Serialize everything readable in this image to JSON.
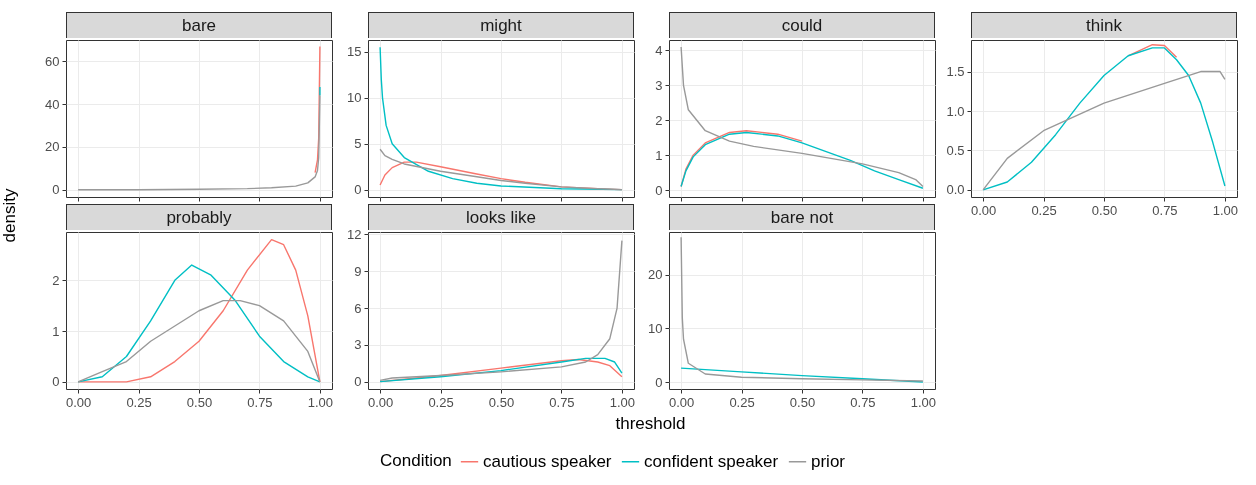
{
  "chart_data": [
    {
      "type": "line",
      "title": "bare",
      "xlim": [
        -0.05,
        1.05
      ],
      "xticks": [
        {
          "value": 0,
          "label": null
        },
        {
          "value": 0.25,
          "label": null
        },
        {
          "value": 0.5,
          "label": null
        },
        {
          "value": 0.75,
          "label": null
        },
        {
          "value": 1,
          "label": null
        }
      ],
      "ylim": [
        -3.4,
        70
      ],
      "yticks": [
        0,
        20,
        40,
        60
      ],
      "grid": true,
      "tick_labels": "y",
      "series": [
        {
          "color": "#f8766d",
          "x": [
            0.98,
            0.99,
            0.995,
            1
          ],
          "values": [
            8,
            14,
            24,
            67
          ]
        },
        {
          "color": "#00bfc4",
          "x": [
            1,
            1
          ],
          "values": [
            44,
            48
          ]
        },
        {
          "color": "#999999",
          "x": [
            0,
            0.25,
            0.5,
            0.7,
            0.8,
            0.9,
            0.95,
            0.98,
            0.99,
            0.995,
            1
          ],
          "values": [
            0,
            0,
            0.2,
            0.5,
            0.9,
            1.7,
            3.2,
            6,
            9,
            15,
            44
          ]
        }
      ]
    },
    {
      "type": "line",
      "title": "might",
      "xlim": [
        -0.05,
        1.05
      ],
      "xticks": [
        {
          "value": 0,
          "label": null
        },
        {
          "value": 0.25,
          "label": null
        },
        {
          "value": 0.5,
          "label": null
        },
        {
          "value": 0.75,
          "label": null
        },
        {
          "value": 1,
          "label": null
        }
      ],
      "ylim": [
        -0.8,
        16.3
      ],
      "yticks": [
        0,
        5,
        10,
        15
      ],
      "grid": true,
      "tick_labels": "y",
      "series": [
        {
          "color": "#f8766d",
          "x": [
            0,
            0.02,
            0.05,
            0.1,
            0.15,
            0.25,
            0.4,
            0.5,
            0.6,
            0.75,
            0.9,
            1
          ],
          "values": [
            0.5,
            1.6,
            2.4,
            3,
            3,
            2.5,
            1.7,
            1.2,
            0.8,
            0.3,
            0.1,
            0
          ]
        },
        {
          "color": "#00bfc4",
          "x": [
            0,
            0.005,
            0.01,
            0.025,
            0.05,
            0.1,
            0.2,
            0.3,
            0.4,
            0.5,
            0.75,
            1
          ],
          "values": [
            15.5,
            12,
            10,
            7,
            5,
            3.5,
            2,
            1.2,
            0.7,
            0.4,
            0.1,
            0
          ]
        },
        {
          "color": "#999999",
          "x": [
            0,
            0.02,
            0.05,
            0.1,
            0.25,
            0.4,
            0.5,
            0.6,
            0.75,
            0.9,
            1
          ],
          "values": [
            4.4,
            3.7,
            3.3,
            2.8,
            2,
            1.4,
            1,
            0.7,
            0.3,
            0.1,
            0
          ]
        }
      ]
    },
    {
      "type": "line",
      "title": "could",
      "xlim": [
        -0.05,
        1.05
      ],
      "xticks": [
        {
          "value": 0,
          "label": null
        },
        {
          "value": 0.25,
          "label": null
        },
        {
          "value": 0.5,
          "label": null
        },
        {
          "value": 0.75,
          "label": null
        },
        {
          "value": 1,
          "label": null
        }
      ],
      "ylim": [
        -0.2,
        4.3
      ],
      "yticks": [
        0,
        1,
        2,
        3,
        4
      ],
      "grid": true,
      "tick_labels": "y",
      "series": [
        {
          "color": "#f8766d",
          "x": [
            0,
            0.02,
            0.05,
            0.1,
            0.2,
            0.27,
            0.4,
            0.5
          ],
          "values": [
            0.1,
            0.6,
            1,
            1.35,
            1.65,
            1.7,
            1.6,
            1.4
          ]
        },
        {
          "color": "#00bfc4",
          "x": [
            0,
            0.02,
            0.05,
            0.1,
            0.2,
            0.27,
            0.4,
            0.5,
            0.6,
            0.7,
            0.8,
            0.9,
            1
          ],
          "values": [
            0.1,
            0.55,
            0.95,
            1.3,
            1.6,
            1.65,
            1.55,
            1.35,
            1.1,
            0.85,
            0.55,
            0.3,
            0.05
          ]
        },
        {
          "color": "#999999",
          "x": [
            0,
            0.01,
            0.03,
            0.1,
            0.2,
            0.3,
            0.5,
            0.75,
            0.9,
            0.97,
            1
          ],
          "values": [
            4.1,
            3,
            2.3,
            1.7,
            1.4,
            1.25,
            1.05,
            0.75,
            0.5,
            0.3,
            0.1
          ]
        }
      ]
    },
    {
      "type": "line",
      "title": "think",
      "xlim": [
        -0.05,
        1.05
      ],
      "xticks": [
        {
          "value": 0,
          "label": "0.00"
        },
        {
          "value": 0.25,
          "label": "0.25"
        },
        {
          "value": 0.5,
          "label": "0.50"
        },
        {
          "value": 0.75,
          "label": "0.75"
        },
        {
          "value": 1,
          "label": "1.00"
        }
      ],
      "ylim": [
        -0.09,
        1.9
      ],
      "yticks": [
        {
          "value": 0,
          "label": "0.0"
        },
        {
          "value": 0.5,
          "label": "0.5"
        },
        {
          "value": 1,
          "label": "1.0"
        },
        {
          "value": 1.5,
          "label": "1.5"
        }
      ],
      "grid": true,
      "series": [
        {
          "color": "#f8766d",
          "x": [
            0.6,
            0.7,
            0.75,
            0.8
          ],
          "values": [
            1.7,
            1.84,
            1.83,
            1.68
          ]
        },
        {
          "color": "#00bfc4",
          "x": [
            0,
            0.1,
            0.2,
            0.3,
            0.4,
            0.5,
            0.6,
            0.7,
            0.75,
            0.8,
            0.85,
            0.9,
            0.95,
            1
          ],
          "values": [
            0,
            0.1,
            0.35,
            0.7,
            1.1,
            1.45,
            1.7,
            1.8,
            1.8,
            1.65,
            1.45,
            1.1,
            0.6,
            0.05
          ]
        },
        {
          "color": "#999999",
          "x": [
            0,
            0.05,
            0.1,
            0.25,
            0.5,
            0.75,
            0.9,
            0.95,
            0.98,
            1
          ],
          "values": [
            0,
            0.2,
            0.4,
            0.75,
            1.1,
            1.35,
            1.5,
            1.5,
            1.5,
            1.4
          ]
        }
      ]
    },
    {
      "type": "line",
      "title": "probably",
      "ylabel": "density",
      "xlim": [
        -0.05,
        1.05
      ],
      "xticks": [
        {
          "value": 0,
          "label": "0.00"
        },
        {
          "value": 0.25,
          "label": "0.25"
        },
        {
          "value": 0.5,
          "label": "0.50"
        },
        {
          "value": 0.75,
          "label": "0.75"
        },
        {
          "value": 1,
          "label": "1.00"
        }
      ],
      "ylim": [
        -0.14,
        2.95
      ],
      "yticks": [
        0,
        1,
        2
      ],
      "grid": true,
      "series": [
        {
          "color": "#f8766d",
          "x": [
            0,
            0.2,
            0.3,
            0.4,
            0.5,
            0.6,
            0.7,
            0.8,
            0.85,
            0.9,
            0.95,
            1
          ],
          "values": [
            0,
            0,
            0.1,
            0.4,
            0.8,
            1.4,
            2.2,
            2.8,
            2.7,
            2.2,
            1.3,
            0
          ]
        },
        {
          "color": "#00bfc4",
          "x": [
            0,
            0.1,
            0.2,
            0.3,
            0.4,
            0.47,
            0.55,
            0.65,
            0.75,
            0.85,
            0.95,
            1
          ],
          "values": [
            0,
            0.1,
            0.5,
            1.2,
            2,
            2.3,
            2.1,
            1.6,
            0.9,
            0.4,
            0.1,
            0
          ]
        },
        {
          "color": "#999999",
          "x": [
            0,
            0.1,
            0.2,
            0.3,
            0.4,
            0.5,
            0.6,
            0.67,
            0.75,
            0.85,
            0.95,
            1
          ],
          "values": [
            0,
            0.2,
            0.4,
            0.8,
            1.1,
            1.4,
            1.6,
            1.6,
            1.5,
            1.2,
            0.6,
            0
          ]
        }
      ]
    },
    {
      "type": "line",
      "title": "looks like",
      "xlabel": "threshold",
      "legend": "bottom",
      "legend_title": "Condition",
      "xlim": [
        -0.05,
        1.05
      ],
      "xticks": [
        {
          "value": 0,
          "label": "0.00"
        },
        {
          "value": 0.25,
          "label": "0.25"
        },
        {
          "value": 0.5,
          "label": "0.50"
        },
        {
          "value": 0.75,
          "label": "0.75"
        },
        {
          "value": 1,
          "label": "1.00"
        }
      ],
      "ylim": [
        -0.6,
        12.2
      ],
      "yticks": [
        0,
        3,
        6,
        9,
        12
      ],
      "grid": true,
      "series": [
        {
          "name": "cautious speaker",
          "color": "#f8766d",
          "x": [
            0,
            0.1,
            0.25,
            0.5,
            0.75,
            0.82,
            0.9,
            0.95,
            1
          ],
          "values": [
            0,
            0.2,
            0.5,
            1.1,
            1.7,
            1.8,
            1.6,
            1.3,
            0.4
          ]
        },
        {
          "name": "confident speaker",
          "color": "#00bfc4",
          "x": [
            0,
            0.25,
            0.5,
            0.75,
            0.85,
            0.93,
            0.97,
            1
          ],
          "values": [
            0,
            0.4,
            0.9,
            1.6,
            1.9,
            1.9,
            1.6,
            0.7
          ]
        },
        {
          "name": "prior",
          "color": "#999999",
          "x": [
            0,
            0.05,
            0.25,
            0.5,
            0.75,
            0.85,
            0.9,
            0.95,
            0.98,
            1
          ],
          "values": [
            0.1,
            0.3,
            0.5,
            0.8,
            1.2,
            1.6,
            2.2,
            3.5,
            6,
            11.5
          ]
        }
      ]
    },
    {
      "type": "line",
      "title": "bare not",
      "xlim": [
        -0.05,
        1.05
      ],
      "xticks": [
        {
          "value": 0,
          "label": "0.00"
        },
        {
          "value": 0.25,
          "label": "0.25"
        },
        {
          "value": 0.5,
          "label": "0.50"
        },
        {
          "value": 0.75,
          "label": "0.75"
        },
        {
          "value": 1,
          "label": "1.00"
        }
      ],
      "ylim": [
        -1.3,
        28
      ],
      "yticks": [
        0,
        10,
        20
      ],
      "grid": true,
      "series": [
        {
          "color": "#00bfc4",
          "x": [
            0,
            0.25,
            0.5,
            0.75,
            1
          ],
          "values": [
            2.6,
            1.9,
            1.2,
            0.6,
            0
          ]
        },
        {
          "color": "#999999",
          "x": [
            0,
            0.005,
            0.01,
            0.03,
            0.1,
            0.25,
            0.5,
            0.75,
            1
          ],
          "values": [
            27,
            12,
            8,
            3.5,
            1.5,
            0.9,
            0.6,
            0.4,
            0.2
          ]
        }
      ]
    }
  ]
}
